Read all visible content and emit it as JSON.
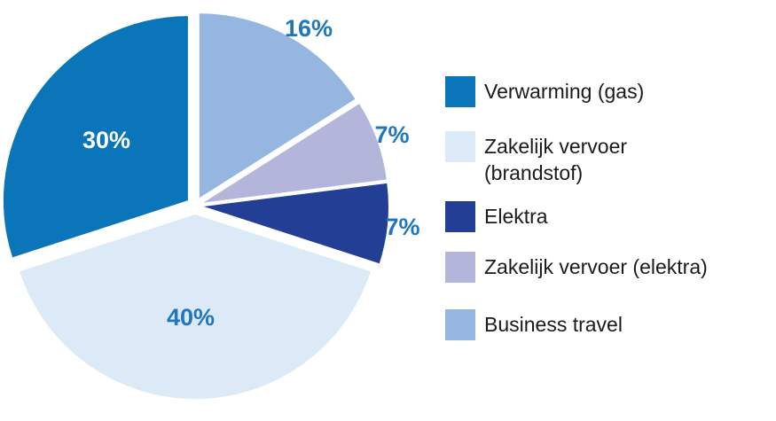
{
  "chart_data": {
    "type": "pie",
    "title": "",
    "slices": [
      {
        "label": "Business travel",
        "value": 16,
        "display": "16%",
        "color": "#95b6e1",
        "label_color": "#1f77bd"
      },
      {
        "label": "Zakelijk vervoer (elektra)",
        "value": 7,
        "display": "7%",
        "color": "#b4b5db",
        "label_color": "#1f77bd"
      },
      {
        "label": "Elektra",
        "value": 7,
        "display": "7%",
        "color": "#233f95",
        "label_color": "#1f77bd"
      },
      {
        "label": "Zakelijk vervoer\n(brandstof)",
        "value": 40,
        "display": "40%",
        "color": "#dceaf8",
        "label_color": "#1f77bd"
      },
      {
        "label": "Verwarming (gas)",
        "value": 30,
        "display": "30%",
        "color": "#0a75b8",
        "label_color": "#ffffff"
      }
    ],
    "legend_order": [
      4,
      3,
      2,
      1,
      0
    ],
    "legend_placement": "right"
  }
}
